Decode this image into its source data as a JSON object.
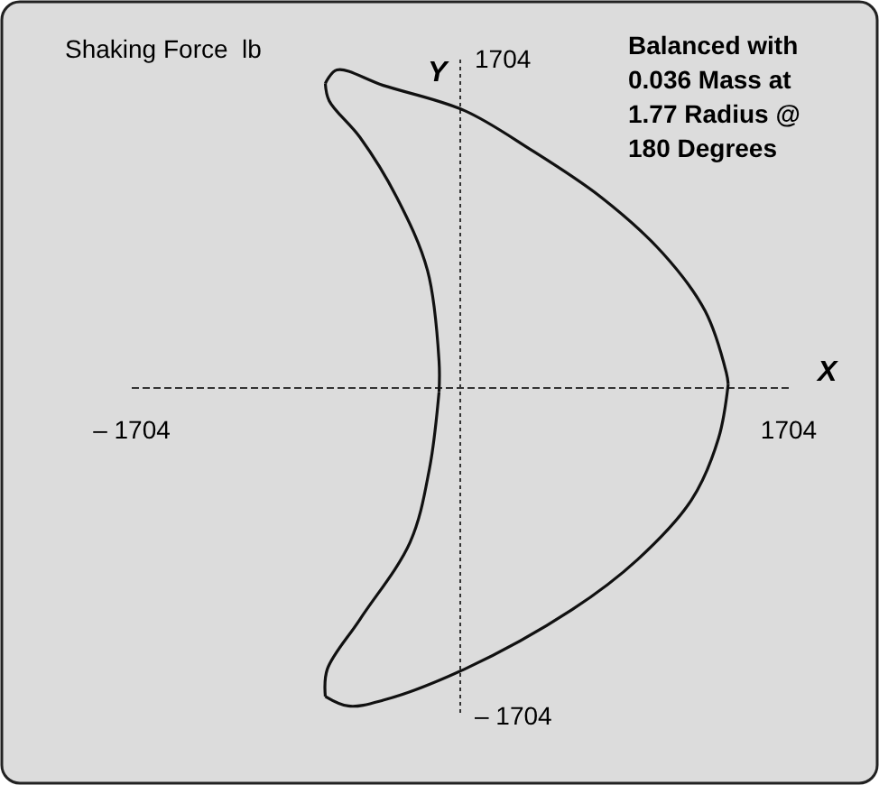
{
  "chart_data": {
    "type": "line",
    "title": "Shaking Force  lb",
    "xlabel": "X",
    "ylabel": "Y",
    "annotations": [
      "Balanced with\n0.036 Mass at\n1.77 Radius @\n180 Degrees"
    ],
    "xlim": [
      -1704,
      1704
    ],
    "ylim": [
      -1704,
      1704
    ],
    "xticks": [
      {
        "value": -1704,
        "label": "– 1704"
      },
      1704
    ],
    "yticks": [
      {
        "value": -1704,
        "label": "– 1704"
      },
      1704
    ],
    "ref_lines": [
      {
        "axis": "x",
        "value": 0,
        "color": "#333333",
        "line_style": "dotted"
      },
      {
        "axis": "y",
        "value": 0,
        "color": "#333333",
        "line_style": "dashed"
      }
    ],
    "series": [
      {
        "color": "#111111",
        "x": [
          -700,
          -640,
          -400,
          20,
          360,
          730,
          1050,
          1270,
          1380,
          1390
        ],
        "values": [
          1580,
          1650,
          1570,
          1440,
          1240,
          990,
          700,
          400,
          80,
          20
        ]
      },
      {
        "color": "#111111",
        "x": [
          1390,
          1340,
          1200,
          920,
          580,
          20,
          -400,
          -580,
          -700
        ],
        "values": [
          20,
          -260,
          -580,
          -890,
          -1150,
          -1460,
          -1620,
          -1650,
          -1600
        ]
      },
      {
        "color": "#111111",
        "x": [
          -700,
          -690,
          -520,
          -260,
          -160,
          -110
        ],
        "values": [
          -1600,
          -1460,
          -1200,
          -800,
          -420,
          -20
        ]
      },
      {
        "color": "#111111",
        "x": [
          -110,
          -110,
          -170,
          -330,
          -520,
          -680,
          -700
        ],
        "values": [
          -20,
          140,
          610,
          990,
          1300,
          1490,
          1580
        ]
      }
    ]
  }
}
